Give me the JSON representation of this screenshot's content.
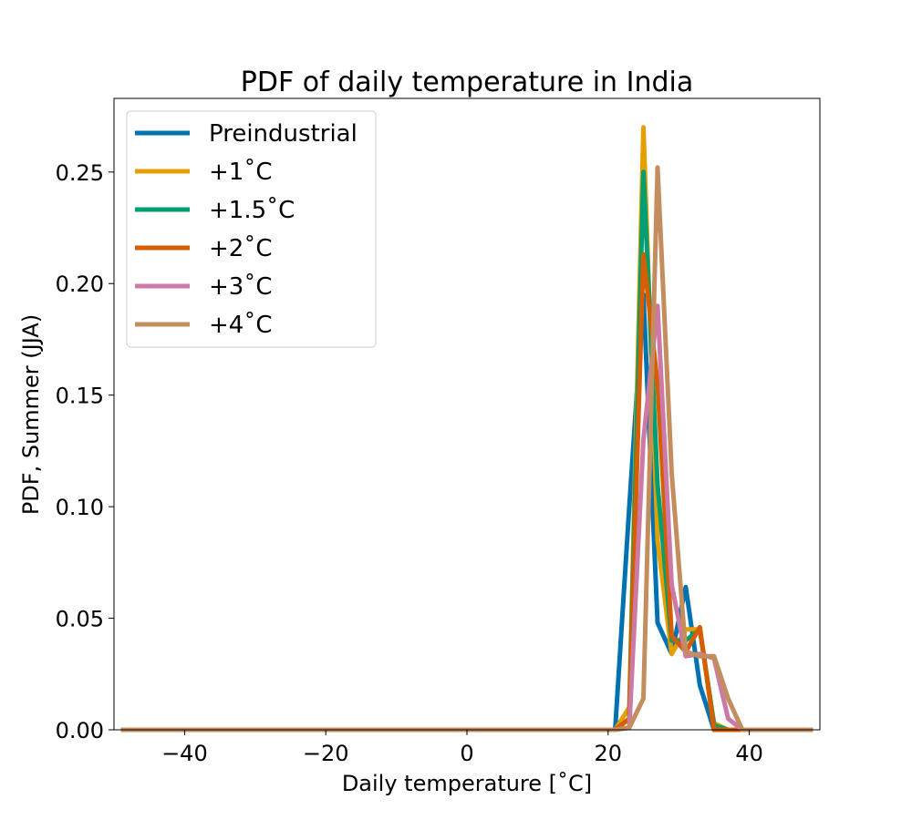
{
  "chart_data": {
    "type": "line",
    "title": "PDF of daily temperature in India",
    "xlabel": "Daily temperature [˚C]",
    "ylabel": "PDF, Summer (JJA)",
    "xlim": [
      -50,
      50
    ],
    "ylim": [
      0,
      0.283
    ],
    "xticks": [
      -40,
      -20,
      0,
      20,
      40
    ],
    "xtick_labels": [
      "−40",
      "−20",
      "0",
      "20",
      "40"
    ],
    "yticks": [
      0.0,
      0.05,
      0.1,
      0.15,
      0.2,
      0.25
    ],
    "ytick_labels": [
      "0.00",
      "0.05",
      "0.10",
      "0.15",
      "0.20",
      "0.25"
    ],
    "grid": false,
    "legend_position": "top-left",
    "series": [
      {
        "name": "Preindustrial",
        "color": "#0072B2",
        "x": [
          -49,
          21,
          23,
          25,
          27,
          29,
          31,
          33,
          35,
          37,
          49
        ],
        "y": [
          0,
          0,
          0.1,
          0.195,
          0.048,
          0.034,
          0.064,
          0.02,
          0,
          0,
          0
        ]
      },
      {
        "name": "+1˚C",
        "color": "#E69F00",
        "x": [
          -49,
          21,
          23,
          25,
          27,
          29,
          31,
          33,
          35,
          37,
          49
        ],
        "y": [
          0,
          0,
          0.01,
          0.27,
          0.085,
          0.034,
          0.045,
          0.045,
          0.003,
          0,
          0
        ]
      },
      {
        "name": "+1.5˚C",
        "color": "#009E73",
        "x": [
          -49,
          21,
          23,
          25,
          27,
          29,
          31,
          33,
          35,
          37,
          49
        ],
        "y": [
          0,
          0,
          0.005,
          0.25,
          0.11,
          0.04,
          0.04,
          0.045,
          0.002,
          0,
          0
        ]
      },
      {
        "name": "+2˚C",
        "color": "#D55E00",
        "x": [
          -49,
          21,
          23,
          25,
          27,
          29,
          31,
          33,
          35,
          37,
          49
        ],
        "y": [
          0,
          0,
          0.005,
          0.213,
          0.155,
          0.042,
          0.035,
          0.046,
          0,
          0,
          0
        ]
      },
      {
        "name": "+3˚C",
        "color": "#CC79A7",
        "x": [
          -49,
          21,
          23,
          25,
          27,
          29,
          31,
          33,
          35,
          37,
          39,
          49
        ],
        "y": [
          0,
          0,
          0.001,
          0.13,
          0.19,
          0.065,
          0.033,
          0.034,
          0.032,
          0.005,
          0,
          0
        ]
      },
      {
        "name": "+4˚C",
        "color": "#C48D5E",
        "x": [
          -49,
          21,
          23,
          25,
          27,
          29,
          31,
          33,
          35,
          37,
          39,
          49
        ],
        "y": [
          0,
          0,
          0.001,
          0.014,
          0.252,
          0.115,
          0.035,
          0.033,
          0.033,
          0.014,
          0,
          0
        ]
      }
    ]
  }
}
